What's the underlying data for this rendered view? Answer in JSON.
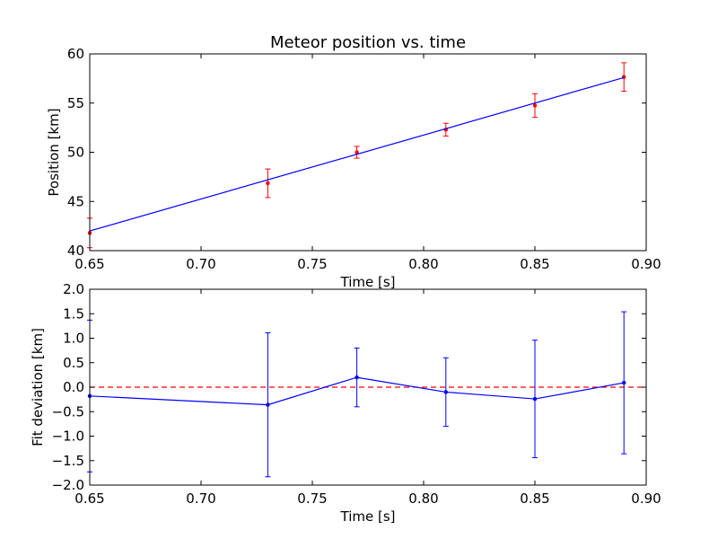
{
  "chart_data": [
    {
      "type": "scatter",
      "title": "Meteor position vs. time",
      "xlabel": "Time [s]",
      "ylabel": "Position [km]",
      "xlim": [
        0.65,
        0.9
      ],
      "ylim": [
        40,
        60
      ],
      "xticks": [
        0.65,
        0.7,
        0.75,
        0.8,
        0.85,
        0.9
      ],
      "xtick_labels": [
        "0.65",
        "0.70",
        "0.75",
        "0.80",
        "0.85",
        "0.90"
      ],
      "yticks": [
        40,
        45,
        50,
        55,
        60
      ],
      "ytick_labels": [
        "40",
        "45",
        "50",
        "55",
        "60"
      ],
      "series": [
        {
          "kind": "errorbar",
          "color": "#ff0000",
          "x": [
            0.65,
            0.73,
            0.77,
            0.81,
            0.85,
            0.89
          ],
          "y": [
            41.8,
            46.85,
            50.0,
            52.3,
            54.75,
            57.65
          ],
          "yerr": [
            1.5,
            1.45,
            0.6,
            0.65,
            1.2,
            1.45
          ]
        },
        {
          "kind": "line",
          "color": "#0000ff",
          "x": [
            0.65,
            0.89
          ],
          "y": [
            42.0,
            57.6
          ]
        }
      ]
    },
    {
      "type": "line",
      "title": "",
      "xlabel": "Time [s]",
      "ylabel": "Fit deviation [km]",
      "xlim": [
        0.65,
        0.9
      ],
      "ylim": [
        -2.0,
        2.0
      ],
      "xticks": [
        0.65,
        0.7,
        0.75,
        0.8,
        0.85,
        0.9
      ],
      "xtick_labels": [
        "0.65",
        "0.70",
        "0.75",
        "0.80",
        "0.85",
        "0.90"
      ],
      "yticks": [
        -2.0,
        -1.5,
        -1.0,
        -0.5,
        0.0,
        0.5,
        1.0,
        1.5,
        2.0
      ],
      "ytick_labels": [
        "−2.0",
        "−1.5",
        "−1.0",
        "−0.5",
        "0.0",
        "0.5",
        "1.0",
        "1.5",
        "2.0"
      ],
      "series": [
        {
          "kind": "errorbar-line",
          "color": "#0000ff",
          "x": [
            0.65,
            0.73,
            0.77,
            0.81,
            0.85,
            0.89
          ],
          "y": [
            -0.18,
            -0.36,
            0.2,
            -0.1,
            -0.24,
            0.09
          ],
          "yerr": [
            1.55,
            1.47,
            0.6,
            0.7,
            1.2,
            1.45
          ]
        }
      ],
      "reference_line": {
        "y": 0.0,
        "color": "#ff0000",
        "style": "dashed"
      }
    }
  ]
}
